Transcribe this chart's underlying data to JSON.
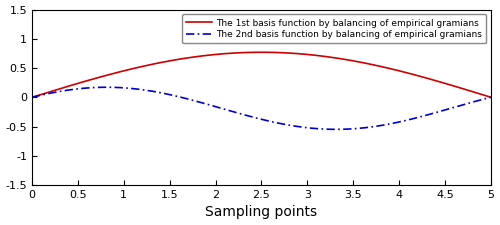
{
  "xlim": [
    0,
    5
  ],
  "ylim": [
    -1.5,
    1.5
  ],
  "xlabel": "Sampling points",
  "xlabel_fontsize": 10,
  "yticks": [
    -1.5,
    -1,
    -0.5,
    0,
    0.5,
    1,
    1.5
  ],
  "xticks": [
    0,
    0.5,
    1,
    1.5,
    2,
    2.5,
    3,
    3.5,
    4,
    4.5,
    5
  ],
  "line1_color": "#cc0000",
  "line2_color": "#0000cc",
  "line1_label": "The 1st basis function by balancing of empirical gramians",
  "line2_label": "The 2nd basis function by balancing of empirical gramians",
  "legend_fontsize": 6.5,
  "tick_fontsize": 8,
  "fig_bg": "#ffffff",
  "axes_bg": "#ffffff",
  "y1_amplitude": 0.77,
  "y2_amplitude": 0.72,
  "y2_phase": 0.55
}
